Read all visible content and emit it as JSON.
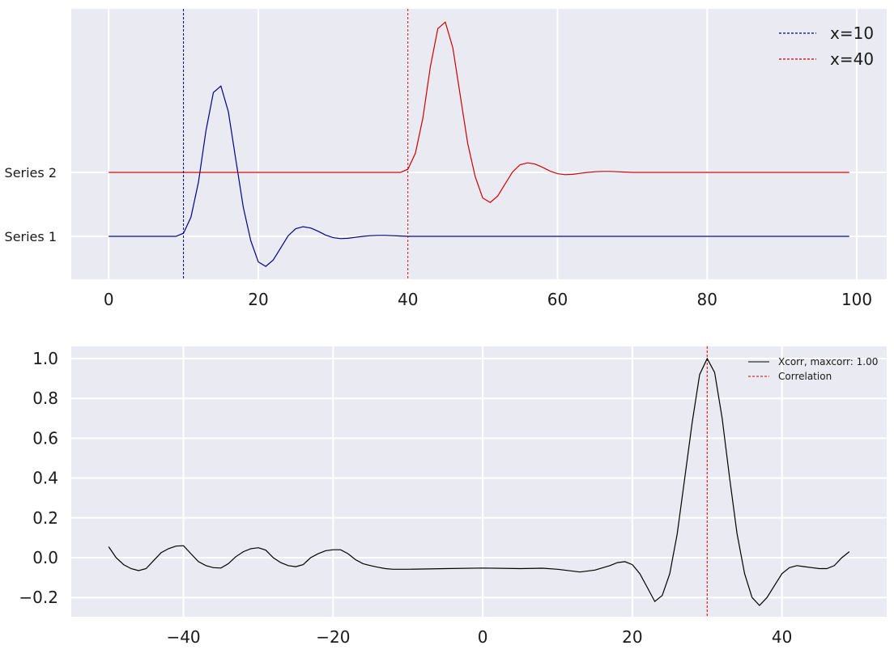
{
  "chart_data": [
    {
      "type": "line",
      "xlim": [
        -5,
        104
      ],
      "xticks": [
        0,
        20,
        40,
        60,
        80,
        100
      ],
      "ytick_labels": [
        "Series 1",
        "Series 2"
      ],
      "grid": true,
      "legend_position": "top-right",
      "series": [
        {
          "name": "Series 1",
          "color": "#00008b",
          "x": [
            0,
            1,
            2,
            3,
            4,
            5,
            6,
            7,
            8,
            9,
            10,
            11,
            12,
            13,
            14,
            15,
            16,
            17,
            18,
            19,
            20,
            21,
            22,
            23,
            24,
            25,
            26,
            27,
            28,
            29,
            30,
            31,
            32,
            33,
            34,
            35,
            36,
            37,
            38,
            39,
            40,
            45,
            50,
            60,
            70,
            80,
            90,
            99
          ],
          "y": [
            0,
            0,
            0,
            0,
            0,
            0,
            0,
            0,
            0,
            0,
            0.05,
            0.3,
            0.85,
            1.65,
            2.25,
            2.35,
            1.95,
            1.2,
            0.45,
            -0.07,
            -0.4,
            -0.47,
            -0.37,
            -0.18,
            0.01,
            0.12,
            0.15,
            0.13,
            0.08,
            0.02,
            -0.02,
            -0.035,
            -0.03,
            -0.015,
            0.0,
            0.01,
            0.015,
            0.015,
            0.01,
            0.005,
            0,
            0,
            0,
            0,
            0,
            0,
            0,
            0
          ]
        },
        {
          "name": "Series 2",
          "color": "#cc0000",
          "x": [
            0,
            10,
            20,
            30,
            35,
            38,
            39,
            40,
            41,
            42,
            43,
            44,
            45,
            46,
            47,
            48,
            49,
            50,
            51,
            52,
            53,
            54,
            55,
            56,
            57,
            58,
            59,
            60,
            61,
            62,
            63,
            64,
            65,
            66,
            67,
            68,
            69,
            70,
            72,
            75,
            80,
            90,
            99
          ],
          "y": [
            0,
            0,
            0,
            0,
            0,
            0,
            0,
            0.05,
            0.3,
            0.85,
            1.65,
            2.25,
            2.35,
            1.95,
            1.2,
            0.45,
            -0.07,
            -0.4,
            -0.47,
            -0.37,
            -0.18,
            0.01,
            0.12,
            0.15,
            0.13,
            0.08,
            0.02,
            -0.02,
            -0.035,
            -0.03,
            -0.015,
            0.0,
            0.01,
            0.015,
            0.015,
            0.01,
            0.005,
            0,
            0,
            0,
            0,
            0,
            0
          ]
        }
      ],
      "vlines": [
        {
          "x": 10,
          "color": "#00008b",
          "label": "x=10"
        },
        {
          "x": 40,
          "color": "#cc0000",
          "label": "x=40"
        }
      ]
    },
    {
      "type": "line",
      "xlim": [
        -55,
        54
      ],
      "ylim": [
        -0.3,
        1.05
      ],
      "xticks": [
        -40,
        -20,
        0,
        20,
        40
      ],
      "yticks": [
        -0.2,
        0.0,
        0.2,
        0.4,
        0.6,
        0.8,
        1.0
      ],
      "xtick_labels": [
        "−40",
        "−20",
        "0",
        "20",
        "40"
      ],
      "ytick_labels": [
        "−0.2",
        "0.0",
        "0.2",
        "0.4",
        "0.6",
        "0.8",
        "1.0"
      ],
      "grid": true,
      "legend_position": "top-right",
      "series": [
        {
          "name": "Xcorr, maxcorr: 1.00",
          "color": "#000000",
          "x": [
            -50,
            -49,
            -48,
            -47,
            -46,
            -45,
            -44,
            -43,
            -42,
            -41,
            -40,
            -39,
            -38,
            -37,
            -36,
            -35,
            -34,
            -33,
            -32,
            -31,
            -30,
            -29,
            -28,
            -27,
            -26,
            -25,
            -24,
            -23,
            -22,
            -21,
            -20,
            -19,
            -18,
            -17,
            -16,
            -15,
            -14,
            -13,
            -12,
            -10,
            -5,
            0,
            5,
            8,
            10,
            13,
            15,
            17,
            18,
            19,
            20,
            21,
            22,
            23,
            24,
            25,
            26,
            27,
            28,
            29,
            30,
            31,
            32,
            33,
            34,
            35,
            36,
            37,
            38,
            39,
            40,
            41,
            42,
            43,
            44,
            45,
            46,
            47,
            48,
            49
          ],
          "y": [
            0.055,
            0.0,
            -0.035,
            -0.055,
            -0.065,
            -0.055,
            -0.015,
            0.025,
            0.045,
            0.058,
            0.06,
            0.02,
            -0.02,
            -0.04,
            -0.05,
            -0.052,
            -0.03,
            0.005,
            0.03,
            0.045,
            0.05,
            0.038,
            0.0,
            -0.025,
            -0.04,
            -0.045,
            -0.035,
            0.0,
            0.02,
            0.035,
            0.04,
            0.04,
            0.02,
            -0.01,
            -0.03,
            -0.04,
            -0.048,
            -0.055,
            -0.058,
            -0.058,
            -0.055,
            -0.052,
            -0.055,
            -0.053,
            -0.058,
            -0.072,
            -0.062,
            -0.04,
            -0.025,
            -0.02,
            -0.035,
            -0.08,
            -0.15,
            -0.22,
            -0.19,
            -0.08,
            0.12,
            0.4,
            0.68,
            0.92,
            1.0,
            0.93,
            0.7,
            0.4,
            0.12,
            -0.08,
            -0.2,
            -0.24,
            -0.2,
            -0.14,
            -0.08,
            -0.05,
            -0.04,
            -0.045,
            -0.05,
            -0.055,
            -0.055,
            -0.04,
            0.0,
            0.03
          ]
        }
      ],
      "vlines": [
        {
          "x": 30,
          "color": "#cc0000",
          "label": "Correlation"
        }
      ]
    }
  ]
}
